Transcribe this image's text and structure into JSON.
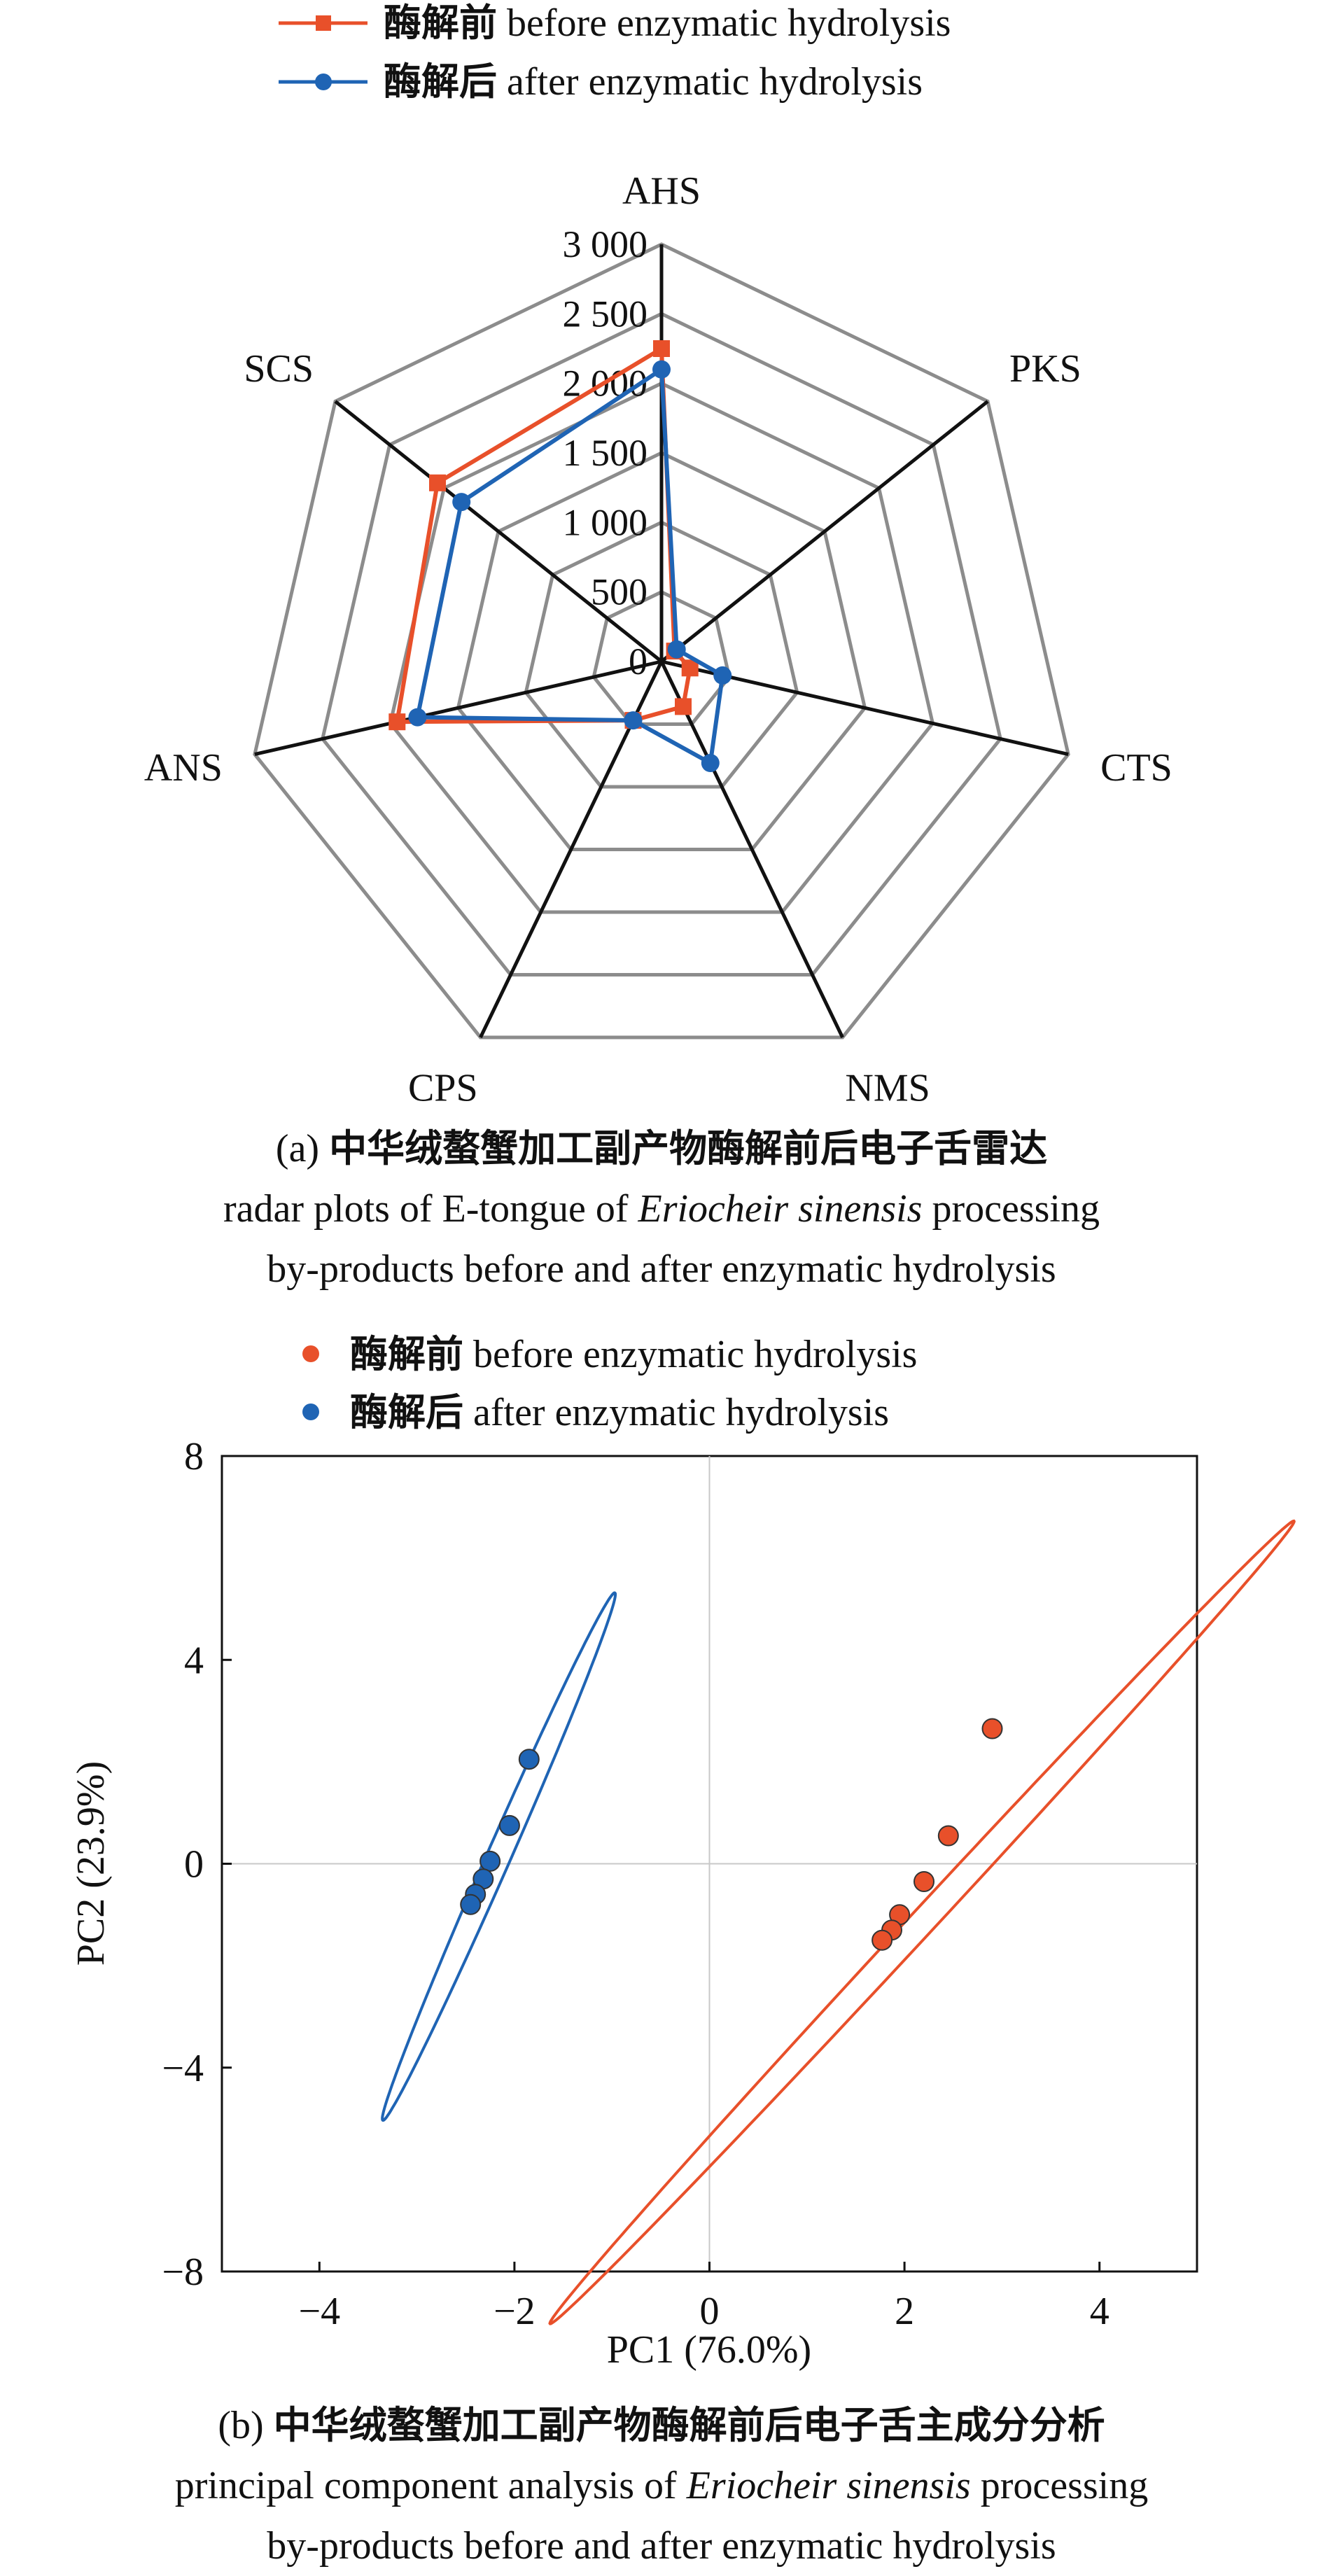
{
  "chart_data": [
    {
      "type": "radar",
      "axes": [
        "AHS",
        "PKS",
        "CTS",
        "NMS",
        "CPS",
        "ANS",
        "SCS"
      ],
      "radial_ticks": [
        "0",
        "500",
        "1 000",
        "1 500",
        "2 000",
        "2 500",
        "3 000"
      ],
      "rmax": 3000,
      "legend": [
        {
          "zh": "酶解前",
          "en": " before enzymatic hydrolysis"
        },
        {
          "zh": "酶解后",
          "en": " after enzymatic hydrolysis"
        }
      ],
      "series": [
        {
          "name": "酶解前 before enzymatic hydrolysis",
          "color": "#e8502a",
          "marker": "square",
          "values": [
            2250,
            120,
            210,
            360,
            470,
            1950,
            2060
          ]
        },
        {
          "name": "酶解后 after enzymatic hydrolysis",
          "color": "#1f64b4",
          "marker": "circle",
          "values": [
            2100,
            140,
            450,
            810,
            470,
            1800,
            1840
          ]
        }
      ],
      "caption": {
        "prefix": "(a) ",
        "zh": "中华绒螯蟹加工副产物酶解前后电子舌雷达",
        "line2_pre": "radar plots of E-tongue of ",
        "species": "Eriocheir sinensis",
        "line2_post": " processing",
        "line3": "by-products before and after enzymatic hydrolysis"
      }
    },
    {
      "type": "scatter",
      "xlabel": "PC1 (76.0%)",
      "ylabel": "PC2 (23.9%)",
      "xlim": [
        -5,
        5
      ],
      "ylim": [
        -8,
        8
      ],
      "xticks": [
        -4,
        -2,
        0,
        2,
        4
      ],
      "yticks": [
        -8,
        -4,
        0,
        4,
        8
      ],
      "xtick_labels": [
        "−4",
        "−2",
        "0",
        "2",
        "4"
      ],
      "ytick_labels": [
        "−8",
        "−4",
        "0",
        "4",
        "8"
      ],
      "legend": [
        {
          "zh": "酶解前",
          "en": " before enzymatic hydrolysis"
        },
        {
          "zh": "酶解后",
          "en": " after enzymatic hydrolysis"
        }
      ],
      "series": [
        {
          "name": "酶解前 before enzymatic hydrolysis",
          "color": "#e8502a",
          "points": [
            [
              2.9,
              2.65
            ],
            [
              2.45,
              0.55
            ],
            [
              2.2,
              -0.35
            ],
            [
              1.95,
              -1.0
            ],
            [
              1.87,
              -1.3
            ],
            [
              1.77,
              -1.5
            ]
          ],
          "ellipse": {
            "center": [
              2.18,
              -1.15
            ],
            "semi_major": 8.75,
            "semi_minor": 0.16,
            "direction": [
              3.85,
              7.95
            ]
          }
        },
        {
          "name": "酶解后 after enzymatic hydrolysis",
          "color": "#1f64b4",
          "points": [
            [
              -1.85,
              2.05
            ],
            [
              -2.05,
              0.75
            ],
            [
              -2.25,
              0.05
            ],
            [
              -2.32,
              -0.3
            ],
            [
              -2.4,
              -0.6
            ],
            [
              -2.45,
              -0.8
            ]
          ],
          "ellipse": {
            "center": [
              -2.16,
              0.14
            ],
            "semi_major": 5.31,
            "semi_minor": 0.13,
            "direction": [
              2.25,
              9.8
            ]
          }
        }
      ],
      "caption": {
        "prefix": "(b) ",
        "zh": "中华绒螯蟹加工副产物酶解前后电子舌主成分分析",
        "line2_pre": "principal component analysis of ",
        "species": "Eriocheir sinensis",
        "line2_post": " processing",
        "line3": "by-products before and after enzymatic hydrolysis"
      }
    }
  ]
}
